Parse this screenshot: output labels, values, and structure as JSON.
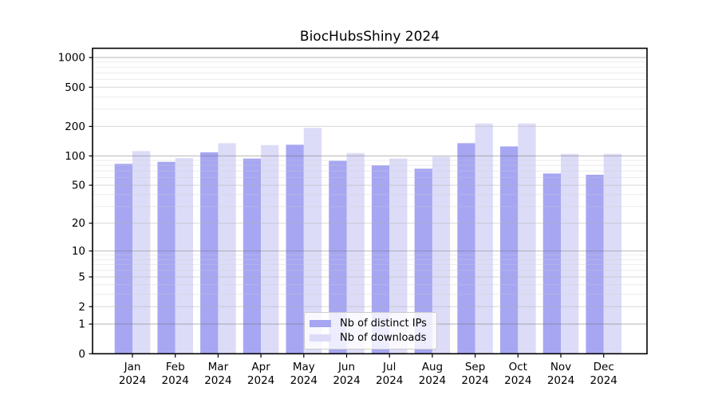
{
  "chart_data": {
    "type": "bar",
    "title": "BiocHubsShiny 2024",
    "categories": [
      "Jan",
      "Feb",
      "Mar",
      "Apr",
      "May",
      "Jun",
      "Jul",
      "Aug",
      "Sep",
      "Oct",
      "Nov",
      "Dec"
    ],
    "x_tick_second_line": "2024",
    "series": [
      {
        "name": "Nb of distinct IPs",
        "color": "#a6a6f2",
        "values": [
          83,
          87,
          109,
          94,
          130,
          89,
          80,
          74,
          135,
          125,
          66,
          64
        ]
      },
      {
        "name": "Nb of downloads",
        "color": "#dcdcf8",
        "values": [
          112,
          95,
          135,
          129,
          193,
          107,
          94,
          98,
          214,
          214,
          105,
          105
        ]
      }
    ],
    "yscale": "log1p",
    "yticks": [
      0,
      1,
      2,
      5,
      10,
      20,
      50,
      100,
      200,
      500,
      1000
    ],
    "minor_yticks": [
      3,
      4,
      6,
      7,
      8,
      9,
      30,
      40,
      60,
      70,
      80,
      90,
      300,
      400,
      600,
      700,
      800,
      900
    ],
    "decade_yticks": [
      1,
      10,
      100,
      1000
    ],
    "ylim": [
      0,
      1240
    ],
    "grid": true,
    "legend": {
      "position": "lower center",
      "entries": [
        "Nb of distinct IPs",
        "Nb of downloads"
      ]
    },
    "colors": {
      "spine": "#000000",
      "tick_label": "#000000",
      "grid_major_decade": "rgba(110,110,110,0.45)",
      "grid_labeled": "rgba(175,175,175,0.50)",
      "grid_minor": "rgba(205,205,205,0.45)"
    }
  }
}
